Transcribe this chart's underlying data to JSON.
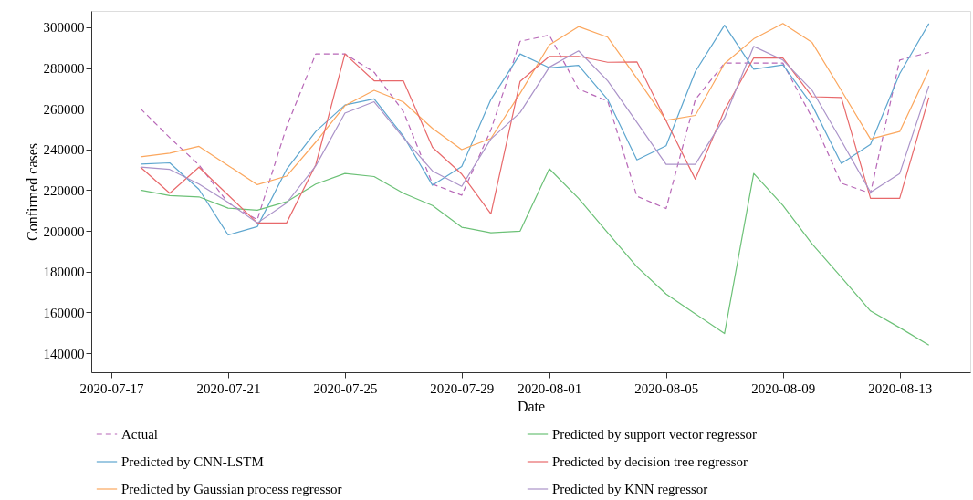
{
  "chart_data": {
    "type": "line",
    "xlabel": "Date",
    "ylabel": "Confirmed cases",
    "x": [
      "2020-07-18",
      "2020-07-19",
      "2020-07-20",
      "2020-07-21",
      "2020-07-22",
      "2020-07-23",
      "2020-07-24",
      "2020-07-25",
      "2020-07-26",
      "2020-07-27",
      "2020-07-28",
      "2020-07-29",
      "2020-07-30",
      "2020-07-31",
      "2020-08-01",
      "2020-08-02",
      "2020-08-03",
      "2020-08-04",
      "2020-08-05",
      "2020-08-06",
      "2020-08-07",
      "2020-08-08",
      "2020-08-09",
      "2020-08-10",
      "2020-08-11",
      "2020-08-12",
      "2020-08-13",
      "2020-08-14"
    ],
    "series": [
      {
        "name": "Actual",
        "color": "#b767b7",
        "line_style": "dashed",
        "values": [
          260000,
          245800,
          232400,
          213700,
          205500,
          251000,
          286900,
          286900,
          277900,
          258700,
          223000,
          217500,
          249600,
          293100,
          296100,
          269700,
          263700,
          217000,
          211000,
          264500,
          282400,
          282400,
          282400,
          255500,
          223400,
          218500,
          283900,
          287600
        ]
      },
      {
        "name": "Predicted by CNN-LSTM",
        "color": "#5ea6cf",
        "values": [
          232800,
          233400,
          220400,
          198000,
          202100,
          230200,
          248800,
          261800,
          264800,
          246600,
          222400,
          231600,
          264500,
          286900,
          280100,
          281300,
          264500,
          234900,
          241800,
          278200,
          301000,
          279400,
          281500,
          261800,
          233100,
          242500,
          277200,
          301800
        ]
      },
      {
        "name": "Predicted by Gaussian process regressor",
        "color": "#fba75e",
        "values": [
          236400,
          238200,
          241500,
          232100,
          222700,
          226900,
          243600,
          261500,
          269000,
          263300,
          250300,
          239900,
          245400,
          267500,
          291300,
          300300,
          295100,
          274900,
          254300,
          256700,
          282100,
          294300,
          301800,
          292500,
          269000,
          245100,
          248800,
          279000
        ]
      },
      {
        "name": "Predicted by support vector regressor",
        "color": "#6cc177",
        "values": [
          220000,
          217300,
          216700,
          211200,
          210200,
          214300,
          223000,
          228200,
          226700,
          218500,
          212500,
          201800,
          199100,
          199900,
          230500,
          216000,
          199100,
          182400,
          169000,
          159300,
          149600,
          228200,
          212500,
          193600,
          177200,
          160700,
          152500,
          143900
        ]
      },
      {
        "name": "Predicted by decision tree regressor",
        "color": "#e8696b",
        "values": [
          231300,
          218500,
          231300,
          217600,
          203900,
          203900,
          232400,
          286900,
          273700,
          273700,
          241000,
          227900,
          208400,
          273400,
          285700,
          285700,
          282800,
          283000,
          254000,
          225400,
          259300,
          284900,
          284900,
          265900,
          265500,
          216000,
          216000,
          265500
        ]
      },
      {
        "name": "Predicted by KNN regressor",
        "color": "#ab93c9",
        "values": [
          231300,
          230200,
          223000,
          214000,
          203900,
          213700,
          231900,
          257800,
          263400,
          245800,
          229400,
          221900,
          245100,
          258100,
          280400,
          288400,
          273700,
          253300,
          232700,
          232700,
          255500,
          290600,
          283900,
          269000,
          244300,
          219000,
          228200,
          271200
        ]
      }
    ],
    "xlim": [
      "2020-07-16T07:30",
      "2020-08-15T10:00"
    ],
    "xticks": [
      {
        "value": "2020-07-17",
        "label": "2020-07-17"
      },
      {
        "value": "2020-07-21",
        "label": "2020-07-21"
      },
      {
        "value": "2020-07-25",
        "label": "2020-07-25"
      },
      {
        "value": "2020-07-29",
        "label": "2020-07-29"
      },
      {
        "value": "2020-08-01",
        "label": "2020-08-01"
      },
      {
        "value": "2020-08-05",
        "label": "2020-08-05"
      },
      {
        "value": "2020-08-09",
        "label": "2020-08-09"
      },
      {
        "value": "2020-08-13",
        "label": "2020-08-13"
      }
    ],
    "ylim": [
      130600,
      308000
    ],
    "yticks": [
      140000,
      160000,
      180000,
      200000,
      220000,
      240000,
      260000,
      280000,
      300000
    ],
    "grid": false,
    "legend": "bottom",
    "marker": "none",
    "line_style": "solid"
  }
}
